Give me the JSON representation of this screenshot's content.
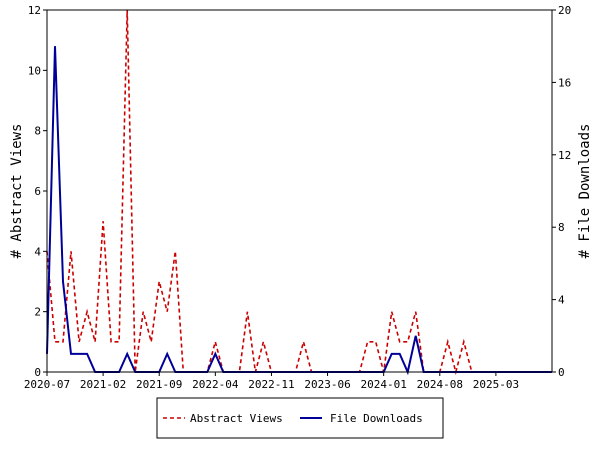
{
  "chart_data": {
    "type": "line",
    "grid": false,
    "legend_position": "bottom-center",
    "x_ticks": [
      "2020-07",
      "2021-02",
      "2021-09",
      "2022-04",
      "2022-11",
      "2023-06",
      "2024-01",
      "2024-08",
      "2025-03"
    ],
    "x_start": "2020-07",
    "x_end": "2025-10",
    "left_axis": {
      "label": "# Abstract Views",
      "ylim": [
        0,
        12
      ],
      "ticks": [
        0,
        2,
        4,
        6,
        8,
        10,
        12
      ]
    },
    "right_axis": {
      "label": "# File Downloads",
      "ylim": [
        0,
        20
      ],
      "ticks": [
        0,
        4,
        8,
        12,
        16,
        20
      ]
    },
    "series": [
      {
        "name": "Abstract Views",
        "axis": "left",
        "color": "#cc0000",
        "dash": true,
        "points": [
          [
            "2020-07",
            4
          ],
          [
            "2020-08",
            1
          ],
          [
            "2020-09",
            1
          ],
          [
            "2020-10",
            4
          ],
          [
            "2020-11",
            1
          ],
          [
            "2020-12",
            2
          ],
          [
            "2021-01",
            1
          ],
          [
            "2021-02",
            5
          ],
          [
            "2021-03",
            1
          ],
          [
            "2021-04",
            1
          ],
          [
            "2021-05",
            12
          ],
          [
            "2021-06",
            0
          ],
          [
            "2021-07",
            2
          ],
          [
            "2021-08",
            1
          ],
          [
            "2021-09",
            3
          ],
          [
            "2021-10",
            2
          ],
          [
            "2021-11",
            4
          ],
          [
            "2021-12",
            0
          ],
          [
            "2022-01",
            0
          ],
          [
            "2022-02",
            0
          ],
          [
            "2022-03",
            0
          ],
          [
            "2022-04",
            1
          ],
          [
            "2022-05",
            0
          ],
          [
            "2022-06",
            0
          ],
          [
            "2022-07",
            0
          ],
          [
            "2022-08",
            2
          ],
          [
            "2022-09",
            0
          ],
          [
            "2022-10",
            1
          ],
          [
            "2022-11",
            0
          ],
          [
            "2022-12",
            0
          ],
          [
            "2023-01",
            0
          ],
          [
            "2023-02",
            0
          ],
          [
            "2023-03",
            1
          ],
          [
            "2023-04",
            0
          ],
          [
            "2023-05",
            0
          ],
          [
            "2023-06",
            0
          ],
          [
            "2023-07",
            0
          ],
          [
            "2023-08",
            0
          ],
          [
            "2023-09",
            0
          ],
          [
            "2023-10",
            0
          ],
          [
            "2023-11",
            1
          ],
          [
            "2023-12",
            1
          ],
          [
            "2024-01",
            0
          ],
          [
            "2024-02",
            2
          ],
          [
            "2024-03",
            1
          ],
          [
            "2024-04",
            1
          ],
          [
            "2024-05",
            2
          ],
          [
            "2024-06",
            0
          ],
          [
            "2024-07",
            0
          ],
          [
            "2024-08",
            0
          ],
          [
            "2024-09",
            1
          ],
          [
            "2024-10",
            0
          ],
          [
            "2024-11",
            1
          ],
          [
            "2024-12",
            0
          ],
          [
            "2025-01",
            0
          ],
          [
            "2025-02",
            0
          ],
          [
            "2025-03",
            0
          ],
          [
            "2025-04",
            0
          ],
          [
            "2025-05",
            0
          ],
          [
            "2025-06",
            0
          ],
          [
            "2025-07",
            0
          ],
          [
            "2025-08",
            0
          ],
          [
            "2025-09",
            0
          ],
          [
            "2025-10",
            0
          ]
        ]
      },
      {
        "name": "File Downloads",
        "axis": "right",
        "color": "#000099",
        "dash": false,
        "points": [
          [
            "2020-07",
            1
          ],
          [
            "2020-08",
            18
          ],
          [
            "2020-09",
            5
          ],
          [
            "2020-10",
            1
          ],
          [
            "2020-11",
            1
          ],
          [
            "2020-12",
            1
          ],
          [
            "2021-01",
            0
          ],
          [
            "2021-02",
            0
          ],
          [
            "2021-03",
            0
          ],
          [
            "2021-04",
            0
          ],
          [
            "2021-05",
            1
          ],
          [
            "2021-06",
            0
          ],
          [
            "2021-07",
            0
          ],
          [
            "2021-08",
            0
          ],
          [
            "2021-09",
            0
          ],
          [
            "2021-10",
            1
          ],
          [
            "2021-11",
            0
          ],
          [
            "2021-12",
            0
          ],
          [
            "2022-01",
            0
          ],
          [
            "2022-02",
            0
          ],
          [
            "2022-03",
            0
          ],
          [
            "2022-04",
            1
          ],
          [
            "2022-05",
            0
          ],
          [
            "2022-06",
            0
          ],
          [
            "2022-07",
            0
          ],
          [
            "2022-08",
            0
          ],
          [
            "2022-09",
            0
          ],
          [
            "2022-10",
            0
          ],
          [
            "2022-11",
            0
          ],
          [
            "2022-12",
            0
          ],
          [
            "2023-01",
            0
          ],
          [
            "2023-02",
            0
          ],
          [
            "2023-03",
            0
          ],
          [
            "2023-04",
            0
          ],
          [
            "2023-05",
            0
          ],
          [
            "2023-06",
            0
          ],
          [
            "2023-07",
            0
          ],
          [
            "2023-08",
            0
          ],
          [
            "2023-09",
            0
          ],
          [
            "2023-10",
            0
          ],
          [
            "2023-11",
            0
          ],
          [
            "2023-12",
            0
          ],
          [
            "2024-01",
            0
          ],
          [
            "2024-02",
            1
          ],
          [
            "2024-03",
            1
          ],
          [
            "2024-04",
            0
          ],
          [
            "2024-05",
            2
          ],
          [
            "2024-06",
            0
          ],
          [
            "2024-07",
            0
          ],
          [
            "2024-08",
            0
          ],
          [
            "2024-09",
            0
          ],
          [
            "2024-10",
            0
          ],
          [
            "2024-11",
            0
          ],
          [
            "2024-12",
            0
          ],
          [
            "2025-01",
            0
          ],
          [
            "2025-02",
            0
          ],
          [
            "2025-03",
            0
          ],
          [
            "2025-04",
            0
          ],
          [
            "2025-05",
            0
          ],
          [
            "2025-06",
            0
          ],
          [
            "2025-07",
            0
          ],
          [
            "2025-08",
            0
          ],
          [
            "2025-09",
            0
          ],
          [
            "2025-10",
            0
          ]
        ]
      }
    ]
  }
}
